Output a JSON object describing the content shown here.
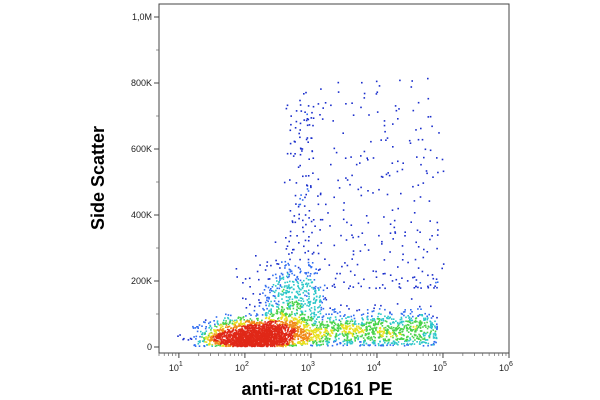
{
  "chart_data": {
    "type": "scatter",
    "style": "flow-cytometry pseudocolor density dot plot",
    "title": "",
    "xlabel": "anti-rat CD161 PE",
    "ylabel": "Side Scatter",
    "x_scale": "log",
    "x_range": [
      5,
      1000000
    ],
    "x_ticks": [
      {
        "value": 10,
        "base": "10",
        "exp": "1"
      },
      {
        "value": 100,
        "base": "10",
        "exp": "2"
      },
      {
        "value": 1000,
        "base": "10",
        "exp": "3"
      },
      {
        "value": 10000,
        "base": "10",
        "exp": "4"
      },
      {
        "value": 100000,
        "base": "10",
        "exp": "5"
      },
      {
        "value": 1000000,
        "base": "10",
        "exp": "6"
      }
    ],
    "y_scale": "linear",
    "y_range": [
      0,
      1000000
    ],
    "y_ticks": [
      {
        "value": 0,
        "label": "0"
      },
      {
        "value": 200000,
        "label": "200K"
      },
      {
        "value": 400000,
        "label": "400K"
      },
      {
        "value": 600000,
        "label": "600K"
      },
      {
        "value": 800000,
        "label": "800K"
      },
      {
        "value": 1000000,
        "label": "1,0M"
      }
    ],
    "grid": false,
    "legend": "none",
    "populations": [
      {
        "center_x": 130,
        "center_y": 30000,
        "peak": true
      },
      {
        "center_x": 600,
        "center_y": 150000
      },
      {
        "center_x": 3000,
        "center_y": 50000
      }
    ],
    "density_colors": [
      "#1a2ecc",
      "#2f6cf0",
      "#2cc7c9",
      "#49d34a",
      "#e8e020",
      "#f08a18",
      "#e02818"
    ]
  }
}
